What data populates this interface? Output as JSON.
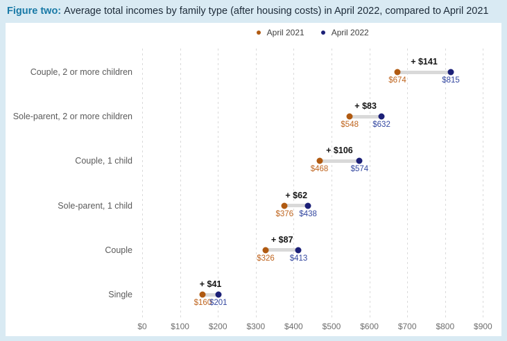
{
  "title": {
    "prefix": "Figure two:",
    "text": "Average total incomes by family type (after housing costs) in April 2022, compared to April 2021"
  },
  "colors": {
    "page_background": "#d9eaf3",
    "panel_background": "#ffffff",
    "title_prefix_accent": "#1879a6",
    "april_2021_dot": "#b05a11",
    "april_2021_label": "#bf651f",
    "april_2022_dot": "#1c2077",
    "april_2022_label": "#3347a0",
    "connector": "#d9d9d9",
    "gridline": "#dadada",
    "diff_text": "#141414"
  },
  "chart_data": {
    "type": "dumbbell",
    "title": "Average total incomes by family type (after housing costs) in April 2022, compared to April 2021",
    "categories": [
      "Couple, 2 or more children",
      "Sole-parent, 2 or more children",
      "Couple, 1 child",
      "Sole-parent, 1 child",
      "Couple",
      "Single"
    ],
    "series": [
      {
        "name": "April 2021",
        "values": [
          674,
          548,
          468,
          376,
          326,
          160
        ],
        "labels": [
          "$674",
          "$548",
          "$468",
          "$376",
          "$326",
          "$160"
        ],
        "color": "#b05a11",
        "label_color": "#bf651f"
      },
      {
        "name": "April 2022",
        "values": [
          815,
          632,
          574,
          438,
          413,
          201
        ],
        "labels": [
          "$815",
          "$632",
          "$574",
          "$438",
          "$413",
          "$201"
        ],
        "color": "#1c2077",
        "label_color": "#3347a0"
      }
    ],
    "diff_labels": [
      "+ $141",
      "+ $83",
      "+ $106",
      "+ $62",
      "+ $87",
      "+ $41"
    ],
    "x_ticks": [
      "$0",
      "$100",
      "$200",
      "$300",
      "$400",
      "$500",
      "$600",
      "$700",
      "$800",
      "$900"
    ],
    "x_tick_values": [
      0,
      100,
      200,
      300,
      400,
      500,
      600,
      700,
      800,
      900
    ],
    "xlim": [
      0,
      900
    ],
    "xlabel": "",
    "ylabel": "",
    "grid": "vertical-dashed",
    "legend_position": "top-center"
  }
}
